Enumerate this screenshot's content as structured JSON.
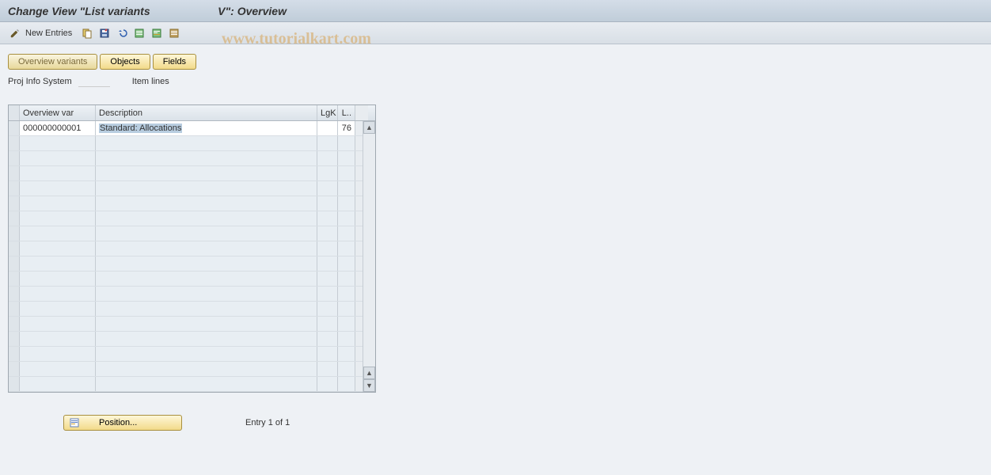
{
  "title": "Change View \"List variants                      V\": Overview",
  "toolbar": {
    "new_entries": "New Entries"
  },
  "watermark": "www.tutorialkart.com",
  "tabs": {
    "overview_variants": "Overview variants",
    "objects": "Objects",
    "fields": "Fields"
  },
  "info": {
    "proj_label": "Proj Info System",
    "item_label": "Item lines"
  },
  "table": {
    "headers": {
      "overview_var": "Overview var",
      "description": "Description",
      "lgk": "LgK",
      "l": "L.."
    },
    "row": {
      "overview_var": "000000000001",
      "description": "Standard: Allocations",
      "lgk": "",
      "l": "76"
    },
    "empty_row_count": 17
  },
  "footer": {
    "position_btn": "Position...",
    "entry_text": "Entry 1 of 1"
  },
  "colors": {
    "title_bg_top": "#d4dde8",
    "title_bg_bot": "#c0cdd9",
    "toolbar_bg_top": "#e8ecf1",
    "toolbar_bg_bot": "#d8dfe6",
    "body_bg": "#eef1f5",
    "tab_gold_top": "#fef7d8",
    "tab_gold_bot": "#f2da8a",
    "tab_border": "#a88f3f",
    "highlight": "#b8cde0",
    "row_alt": "#e8eef3"
  }
}
